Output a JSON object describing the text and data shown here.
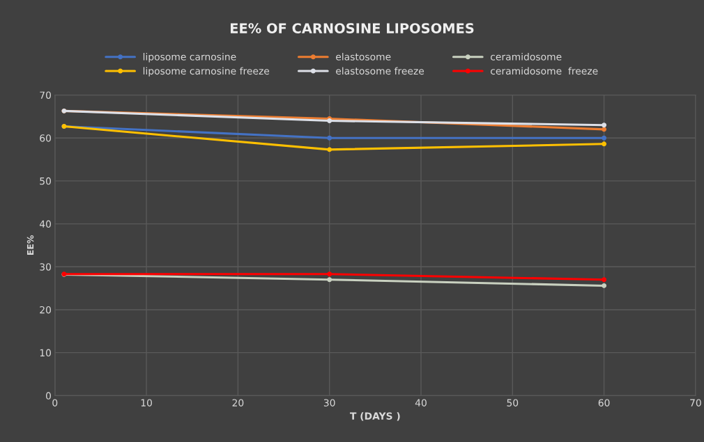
{
  "chart_data": {
    "type": "line",
    "title": "EE% OF CARNOSINE LIPOSOMES",
    "xlabel": "T (DAYS )",
    "ylabel": "EE%",
    "x": [
      1,
      30,
      60
    ],
    "series": [
      {
        "name": "liposome carnosine",
        "color": "#4472c4",
        "values": [
          62.7,
          60.0,
          60.0
        ]
      },
      {
        "name": "elastosome",
        "color": "#ed7d31",
        "values": [
          66.3,
          64.5,
          62.0
        ]
      },
      {
        "name": "ceramidosome",
        "color": "#c9d1c0",
        "values": [
          28.2,
          27.0,
          25.6
        ]
      },
      {
        "name": "liposome carnosine freeze",
        "color": "#ffc000",
        "values": [
          62.7,
          57.3,
          58.6
        ]
      },
      {
        "name": "elastosome freeze",
        "color": "#dde0e8",
        "values": [
          66.3,
          64.0,
          63.0
        ]
      },
      {
        "name": "ceramidosome  freeze",
        "color": "#ff0000",
        "values": [
          28.3,
          28.3,
          27.0
        ]
      }
    ],
    "xlim": [
      0,
      70
    ],
    "xticks": [
      0,
      10,
      20,
      30,
      40,
      50,
      60,
      70
    ],
    "ylim": [
      0,
      70
    ],
    "yticks": [
      0,
      10,
      20,
      30,
      40,
      50,
      60,
      70
    ],
    "grid": true,
    "legend": "top",
    "marker": "circle",
    "line_style": "solid"
  }
}
